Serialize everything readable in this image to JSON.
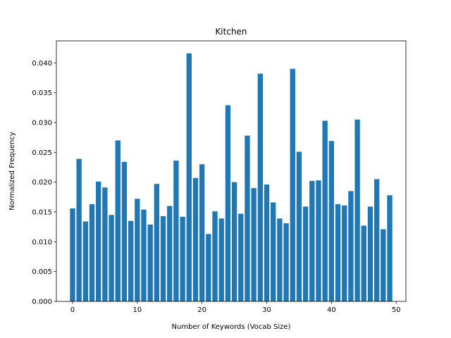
{
  "chart_data": {
    "type": "bar",
    "title": "Kitchen",
    "xlabel": "Number of Keywords (Vocab Size)",
    "ylabel": "Normalized Frequency",
    "color": "#1f77b4",
    "grid": false,
    "legend": "none",
    "xlim": [
      -2.5,
      51.5
    ],
    "ylim": [
      0,
      0.0437
    ],
    "xticks": [
      0,
      10,
      20,
      30,
      40,
      50
    ],
    "xtick_labels": [
      "0",
      "10",
      "20",
      "30",
      "40",
      "50"
    ],
    "yticks": [
      0,
      0.005,
      0.01,
      0.015,
      0.02,
      0.025,
      0.03,
      0.035,
      0.04
    ],
    "ytick_labels": [
      "0.000",
      "0.005",
      "0.010",
      "0.015",
      "0.020",
      "0.025",
      "0.030",
      "0.035",
      "0.040"
    ],
    "x": [
      0,
      1,
      2,
      3,
      4,
      5,
      6,
      7,
      8,
      9,
      10,
      11,
      12,
      13,
      14,
      15,
      16,
      17,
      18,
      19,
      20,
      21,
      22,
      23,
      24,
      25,
      26,
      27,
      28,
      29,
      30,
      31,
      32,
      33,
      34,
      35,
      36,
      37,
      38,
      39,
      40,
      41,
      42,
      43,
      44,
      45,
      46,
      47,
      48,
      49
    ],
    "values": [
      0.0156,
      0.0239,
      0.0134,
      0.0163,
      0.0201,
      0.0191,
      0.0145,
      0.027,
      0.0234,
      0.0135,
      0.0172,
      0.0154,
      0.0129,
      0.0197,
      0.0143,
      0.016,
      0.0236,
      0.0142,
      0.0416,
      0.0207,
      0.023,
      0.0113,
      0.0151,
      0.0139,
      0.0329,
      0.02,
      0.0147,
      0.0278,
      0.019,
      0.0382,
      0.0196,
      0.0166,
      0.0139,
      0.0131,
      0.039,
      0.0251,
      0.0159,
      0.0202,
      0.0203,
      0.0303,
      0.0269,
      0.0163,
      0.0161,
      0.0185,
      0.0305,
      0.0127,
      0.0159,
      0.0205,
      0.0121,
      0.0178
    ]
  }
}
